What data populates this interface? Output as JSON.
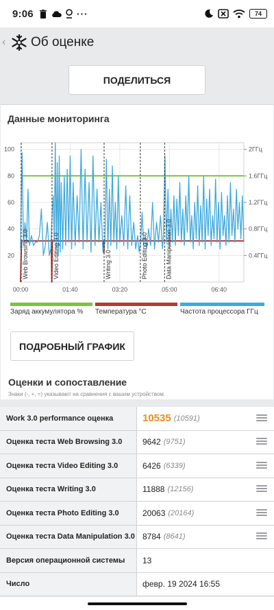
{
  "status": {
    "time": "9:06",
    "battery": "74"
  },
  "appbar": {
    "title": "Об оценке"
  },
  "share_button": "ПОДЕЛИТЬСЯ",
  "monitoring": {
    "title": "Данные мониторинга"
  },
  "detail_button": "ПОДРОБНЫЙ ГРАФИК",
  "scores": {
    "title": "Оценки и сопоставление",
    "note": "Знаки (-, +, =) указывают на сравнения с вашим устройством.",
    "rows": [
      {
        "name": "Work 3.0 performance оценка",
        "value": "10535",
        "ref": "(10591)",
        "accent": true,
        "menu": true
      },
      {
        "name": "Оценка теста Web Browsing 3.0",
        "value": "9642",
        "ref": "(9751)",
        "accent": false,
        "menu": true
      },
      {
        "name": "Оценка теста Video Editing 3.0",
        "value": "6426",
        "ref": "(6339)",
        "accent": false,
        "menu": true
      },
      {
        "name": "Оценка теста Writing 3.0",
        "value": "11888",
        "ref": "(12156)",
        "accent": false,
        "menu": true
      },
      {
        "name": "Оценка теста Photo Editing 3.0",
        "value": "20063",
        "ref": "(20164)",
        "accent": false,
        "menu": true
      },
      {
        "name": "Оценка теста Data Manipulation 3.0",
        "value": "8784",
        "ref": "(8641)",
        "accent": false,
        "menu": true
      },
      {
        "name": "Версия операционной системы",
        "value": "13",
        "ref": "",
        "accent": false,
        "menu": false
      },
      {
        "name": "Число",
        "value": "февр. 19 2024 16:55",
        "ref": "",
        "accent": false,
        "menu": false
      }
    ]
  },
  "chart_data": {
    "type": "line",
    "x_ticks": [
      "00:00",
      "01:40",
      "03:20",
      "05:00",
      "06:40"
    ],
    "x_tick_minutes": [
      0,
      100,
      200,
      300,
      400
    ],
    "x_range_minutes": [
      0,
      450
    ],
    "y_left_ticks": [
      "20",
      "40",
      "60",
      "80",
      "100"
    ],
    "y_left_values": [
      20,
      40,
      60,
      80,
      100
    ],
    "y_left_range": [
      0,
      105
    ],
    "y_right_ticks": [
      "0.4ГГц",
      "0.8ГГц",
      "1.2ГГц",
      "1.6ГГц",
      "2ГГц"
    ],
    "y_right_values": [
      0.4,
      0.8,
      1.2,
      1.6,
      2.0
    ],
    "y_right_range": [
      0,
      2.1
    ],
    "grid": true,
    "legend_position": "bottom",
    "phases": [
      {
        "label": "Web Browsing 3.0",
        "x": 0
      },
      {
        "label": "Video Editing 3.0",
        "x": 62
      },
      {
        "label": "Writing 3.0",
        "x": 167
      },
      {
        "label": "Photo Editing 3.0",
        "x": 240
      },
      {
        "label": "Data Manipulation 3.0",
        "x": 289
      }
    ],
    "series": [
      {
        "name": "Заряд аккумулятора %",
        "color": "#7dc242",
        "axis": "left",
        "points": [
          [
            0,
            80
          ],
          [
            450,
            80
          ]
        ]
      },
      {
        "name": "Температура °C",
        "color": "#b53a35",
        "axis": "left",
        "points": [
          [
            0,
            0
          ],
          [
            2,
            31
          ],
          [
            62,
            31
          ],
          [
            63,
            0
          ],
          [
            64,
            31
          ],
          [
            167,
            31
          ],
          [
            168,
            22
          ],
          [
            169,
            31
          ],
          [
            450,
            31
          ]
        ]
      },
      {
        "name": "Частота процессора ГГц",
        "color": "#3ea9dc",
        "axis": "right",
        "points": [
          [
            0,
            0.5
          ],
          [
            3,
            1.95
          ],
          [
            6,
            0.55
          ],
          [
            9,
            0.9
          ],
          [
            12,
            0.6
          ],
          [
            15,
            1.4
          ],
          [
            18,
            0.55
          ],
          [
            22,
            0.7
          ],
          [
            26,
            0.55
          ],
          [
            30,
            0.6
          ],
          [
            34,
            0.6
          ],
          [
            38,
            0.7
          ],
          [
            42,
            1.1
          ],
          [
            46,
            0.4
          ],
          [
            50,
            0.55
          ],
          [
            54,
            0.9
          ],
          [
            58,
            0.4
          ],
          [
            61,
            0.5
          ],
          [
            64,
            1.1
          ],
          [
            66,
            1.3
          ],
          [
            68,
            0.6
          ],
          [
            70,
            2.1
          ],
          [
            72,
            0.5
          ],
          [
            74,
            1.8
          ],
          [
            76,
            0.4
          ],
          [
            78,
            1.9
          ],
          [
            80,
            0.45
          ],
          [
            82,
            1.5
          ],
          [
            85,
            0.5
          ],
          [
            88,
            1.6
          ],
          [
            91,
            0.55
          ],
          [
            94,
            1.7
          ],
          [
            97,
            0.6
          ],
          [
            100,
            1.9
          ],
          [
            103,
            0.5
          ],
          [
            106,
            1.5
          ],
          [
            110,
            0.55
          ],
          [
            114,
            1.3
          ],
          [
            118,
            0.6
          ],
          [
            122,
            2.0
          ],
          [
            126,
            0.5
          ],
          [
            130,
            1.7
          ],
          [
            134,
            0.6
          ],
          [
            138,
            1.5
          ],
          [
            142,
            0.45
          ],
          [
            146,
            1.9
          ],
          [
            150,
            0.55
          ],
          [
            154,
            1.4
          ],
          [
            158,
            0.6
          ],
          [
            162,
            1.2
          ],
          [
            166,
            0.45
          ],
          [
            170,
            0.6
          ],
          [
            173,
            1.85
          ],
          [
            176,
            0.5
          ],
          [
            179,
            1.4
          ],
          [
            182,
            0.55
          ],
          [
            185,
            1.75
          ],
          [
            188,
            0.6
          ],
          [
            191,
            1.2
          ],
          [
            194,
            0.5
          ],
          [
            197,
            1.6
          ],
          [
            200,
            0.6
          ],
          [
            204,
            1.0
          ],
          [
            208,
            0.55
          ],
          [
            212,
            1.45
          ],
          [
            216,
            0.5
          ],
          [
            220,
            1.3
          ],
          [
            224,
            0.55
          ],
          [
            228,
            0.9
          ],
          [
            232,
            0.5
          ],
          [
            236,
            0.7
          ],
          [
            239,
            0.45
          ],
          [
            242,
            0.6
          ],
          [
            245,
            1.05
          ],
          [
            248,
            0.55
          ],
          [
            251,
            0.7
          ],
          [
            254,
            0.5
          ],
          [
            258,
            0.8
          ],
          [
            262,
            0.55
          ],
          [
            266,
            1.2
          ],
          [
            270,
            0.5
          ],
          [
            274,
            0.9
          ],
          [
            278,
            0.6
          ],
          [
            282,
            1.0
          ],
          [
            286,
            0.5
          ],
          [
            288,
            0.7
          ],
          [
            291,
            1.9
          ],
          [
            294,
            0.6
          ],
          [
            297,
            1.4
          ],
          [
            300,
            0.5
          ],
          [
            303,
            1.1
          ],
          [
            306,
            0.6
          ],
          [
            309,
            1.3
          ],
          [
            312,
            0.55
          ],
          [
            315,
            1.25
          ],
          [
            318,
            0.7
          ],
          [
            321,
            1.5
          ],
          [
            324,
            0.6
          ],
          [
            327,
            1.1
          ],
          [
            330,
            0.55
          ],
          [
            333,
            1.3
          ],
          [
            336,
            0.75
          ],
          [
            339,
            1.6
          ],
          [
            342,
            0.6
          ],
          [
            345,
            1.0
          ],
          [
            348,
            0.5
          ],
          [
            351,
            1.2
          ],
          [
            354,
            0.65
          ],
          [
            357,
            1.45
          ],
          [
            360,
            0.55
          ],
          [
            363,
            1.15
          ],
          [
            366,
            0.6
          ],
          [
            369,
            1.6
          ],
          [
            372,
            0.5
          ],
          [
            375,
            1.25
          ],
          [
            378,
            0.7
          ],
          [
            381,
            1.4
          ],
          [
            384,
            0.55
          ],
          [
            387,
            1.0
          ],
          [
            390,
            0.65
          ],
          [
            393,
            1.55
          ],
          [
            396,
            0.6
          ],
          [
            399,
            1.2
          ],
          [
            402,
            0.5
          ],
          [
            405,
            1.35
          ],
          [
            408,
            0.7
          ],
          [
            411,
            1.0
          ],
          [
            414,
            0.55
          ],
          [
            417,
            1.3
          ],
          [
            420,
            0.6
          ],
          [
            423,
            1.5
          ],
          [
            426,
            0.7
          ],
          [
            429,
            1.1
          ],
          [
            432,
            0.6
          ],
          [
            435,
            1.4
          ],
          [
            438,
            0.8
          ],
          [
            441,
            1.2
          ],
          [
            444,
            0.65
          ],
          [
            447,
            1.3
          ],
          [
            450,
            0.6
          ]
        ]
      }
    ]
  }
}
